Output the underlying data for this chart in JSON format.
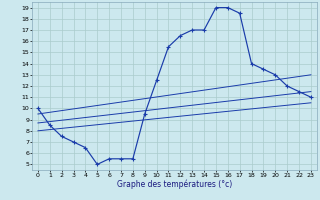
{
  "xlabel": "Graphe des températures (°c)",
  "bg_color": "#cce8ee",
  "line_color": "#1a3caa",
  "grid_color": "#aacccc",
  "xlim": [
    -0.5,
    23.5
  ],
  "ylim": [
    4.5,
    19.5
  ],
  "xticks": [
    0,
    1,
    2,
    3,
    4,
    5,
    6,
    7,
    8,
    9,
    10,
    11,
    12,
    13,
    14,
    15,
    16,
    17,
    18,
    19,
    20,
    21,
    22,
    23
  ],
  "yticks": [
    5,
    6,
    7,
    8,
    9,
    10,
    11,
    12,
    13,
    14,
    15,
    16,
    17,
    18,
    19
  ],
  "main_x": [
    0,
    1,
    2,
    3,
    4,
    5,
    6,
    7,
    8,
    9,
    10,
    11,
    12,
    13,
    14,
    15,
    16,
    17,
    18,
    19,
    20,
    21,
    22,
    23
  ],
  "main_y": [
    10.0,
    8.5,
    7.5,
    7.0,
    6.5,
    5.0,
    5.5,
    5.5,
    5.5,
    9.5,
    12.5,
    15.5,
    16.5,
    17.0,
    17.0,
    19.0,
    19.0,
    18.5,
    14.0,
    13.5,
    13.0,
    12.0,
    11.5,
    11.0
  ],
  "line1_x": [
    0,
    23
  ],
  "line1_y": [
    8.0,
    10.5
  ],
  "line2_x": [
    0,
    23
  ],
  "line2_y": [
    8.7,
    11.5
  ],
  "line3_x": [
    0,
    23
  ],
  "line3_y": [
    9.5,
    13.0
  ]
}
